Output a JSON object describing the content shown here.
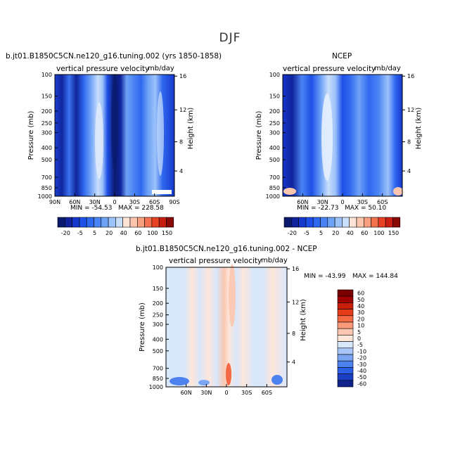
{
  "page_title": "DJF",
  "chart_data": [
    {
      "type": "heatmap",
      "title": "b.jt01.B1850C5CN.ne120_g16.tuning.002 (yrs 1850-1858)",
      "variable": "vertical pressure velocity",
      "units": "mb/day",
      "ylabel": "Pressure (mb)",
      "y2label": "Height (km)",
      "x_ticks": [
        "90N",
        "60N",
        "30N",
        "0",
        "30S",
        "60S",
        "90S"
      ],
      "y_ticks": [
        "100",
        "150",
        "200",
        "250",
        "300",
        "400",
        "500",
        "700",
        "850",
        "1000"
      ],
      "y2_ticks": [
        "16",
        "12",
        "8",
        "4"
      ],
      "min_label": "MIN = -54.53",
      "max_label": "MAX = 228.58",
      "min": -54.53,
      "max": 228.58,
      "colorbar_labels": [
        "-20",
        "-5",
        "5",
        "20",
        "40",
        "60",
        "100",
        "150"
      ]
    },
    {
      "type": "heatmap",
      "title": "NCEP",
      "variable": "vertical pressure velocity",
      "units": "mb/day",
      "ylabel": "Pressure (mb)",
      "y2label": "Height (km)",
      "x_ticks": [
        "60N",
        "30N",
        "0",
        "30S",
        "60S"
      ],
      "y_ticks": [
        "100",
        "150",
        "200",
        "250",
        "300",
        "400",
        "500",
        "700",
        "850",
        "1000"
      ],
      "y2_ticks": [
        "16",
        "12",
        "8",
        "4"
      ],
      "min_label": "MIN = -22.73",
      "max_label": "MAX =  50.10",
      "min": -22.73,
      "max": 50.1,
      "colorbar_labels": [
        "-20",
        "-5",
        "5",
        "20",
        "40",
        "60",
        "100",
        "150"
      ]
    },
    {
      "type": "heatmap",
      "title": "b.jt01.B1850C5CN.ne120_g16.tuning.002 - NCEP",
      "variable": "vertical pressure velocity",
      "units": "mb/day",
      "ylabel": "Pressure (mb)",
      "y2label": "Height (km)",
      "x_ticks": [
        "60N",
        "30N",
        "0",
        "30S",
        "60S"
      ],
      "y_ticks": [
        "100",
        "150",
        "200",
        "250",
        "300",
        "400",
        "500",
        "700",
        "850",
        "1000"
      ],
      "y2_ticks": [
        "16",
        "12",
        "8",
        "4"
      ],
      "min_label": "MIN = -43.99",
      "max_label": "MAX = 144.84",
      "min": -43.99,
      "max": 144.84,
      "colorbar_labels": [
        "60",
        "50",
        "40",
        "30",
        "20",
        "10",
        "5",
        "0",
        "-5",
        "-10",
        "-20",
        "-30",
        "-40",
        "-50",
        "-60"
      ]
    }
  ],
  "colors": {
    "bar1": [
      "#0a1a6e",
      "#10239c",
      "#1537cc",
      "#1d4fe6",
      "#2f68f0",
      "#4a84f4",
      "#6ea2f6",
      "#9cc2fa",
      "#c9defb",
      "#fde3d6",
      "#fbc5ae",
      "#f89f80",
      "#f2714f",
      "#e84126",
      "#c81e12",
      "#8a0a08"
    ],
    "diff_bar": [
      "#7a0000",
      "#a00000",
      "#c81f0a",
      "#e63b1a",
      "#f56a45",
      "#fa9a78",
      "#fcc6b0",
      "#fde6da",
      "#d9e7fb",
      "#a8c6f7",
      "#7ba5f3",
      "#4d82ee",
      "#2b5fe6",
      "#1a3fc4",
      "#0f238a"
    ]
  }
}
